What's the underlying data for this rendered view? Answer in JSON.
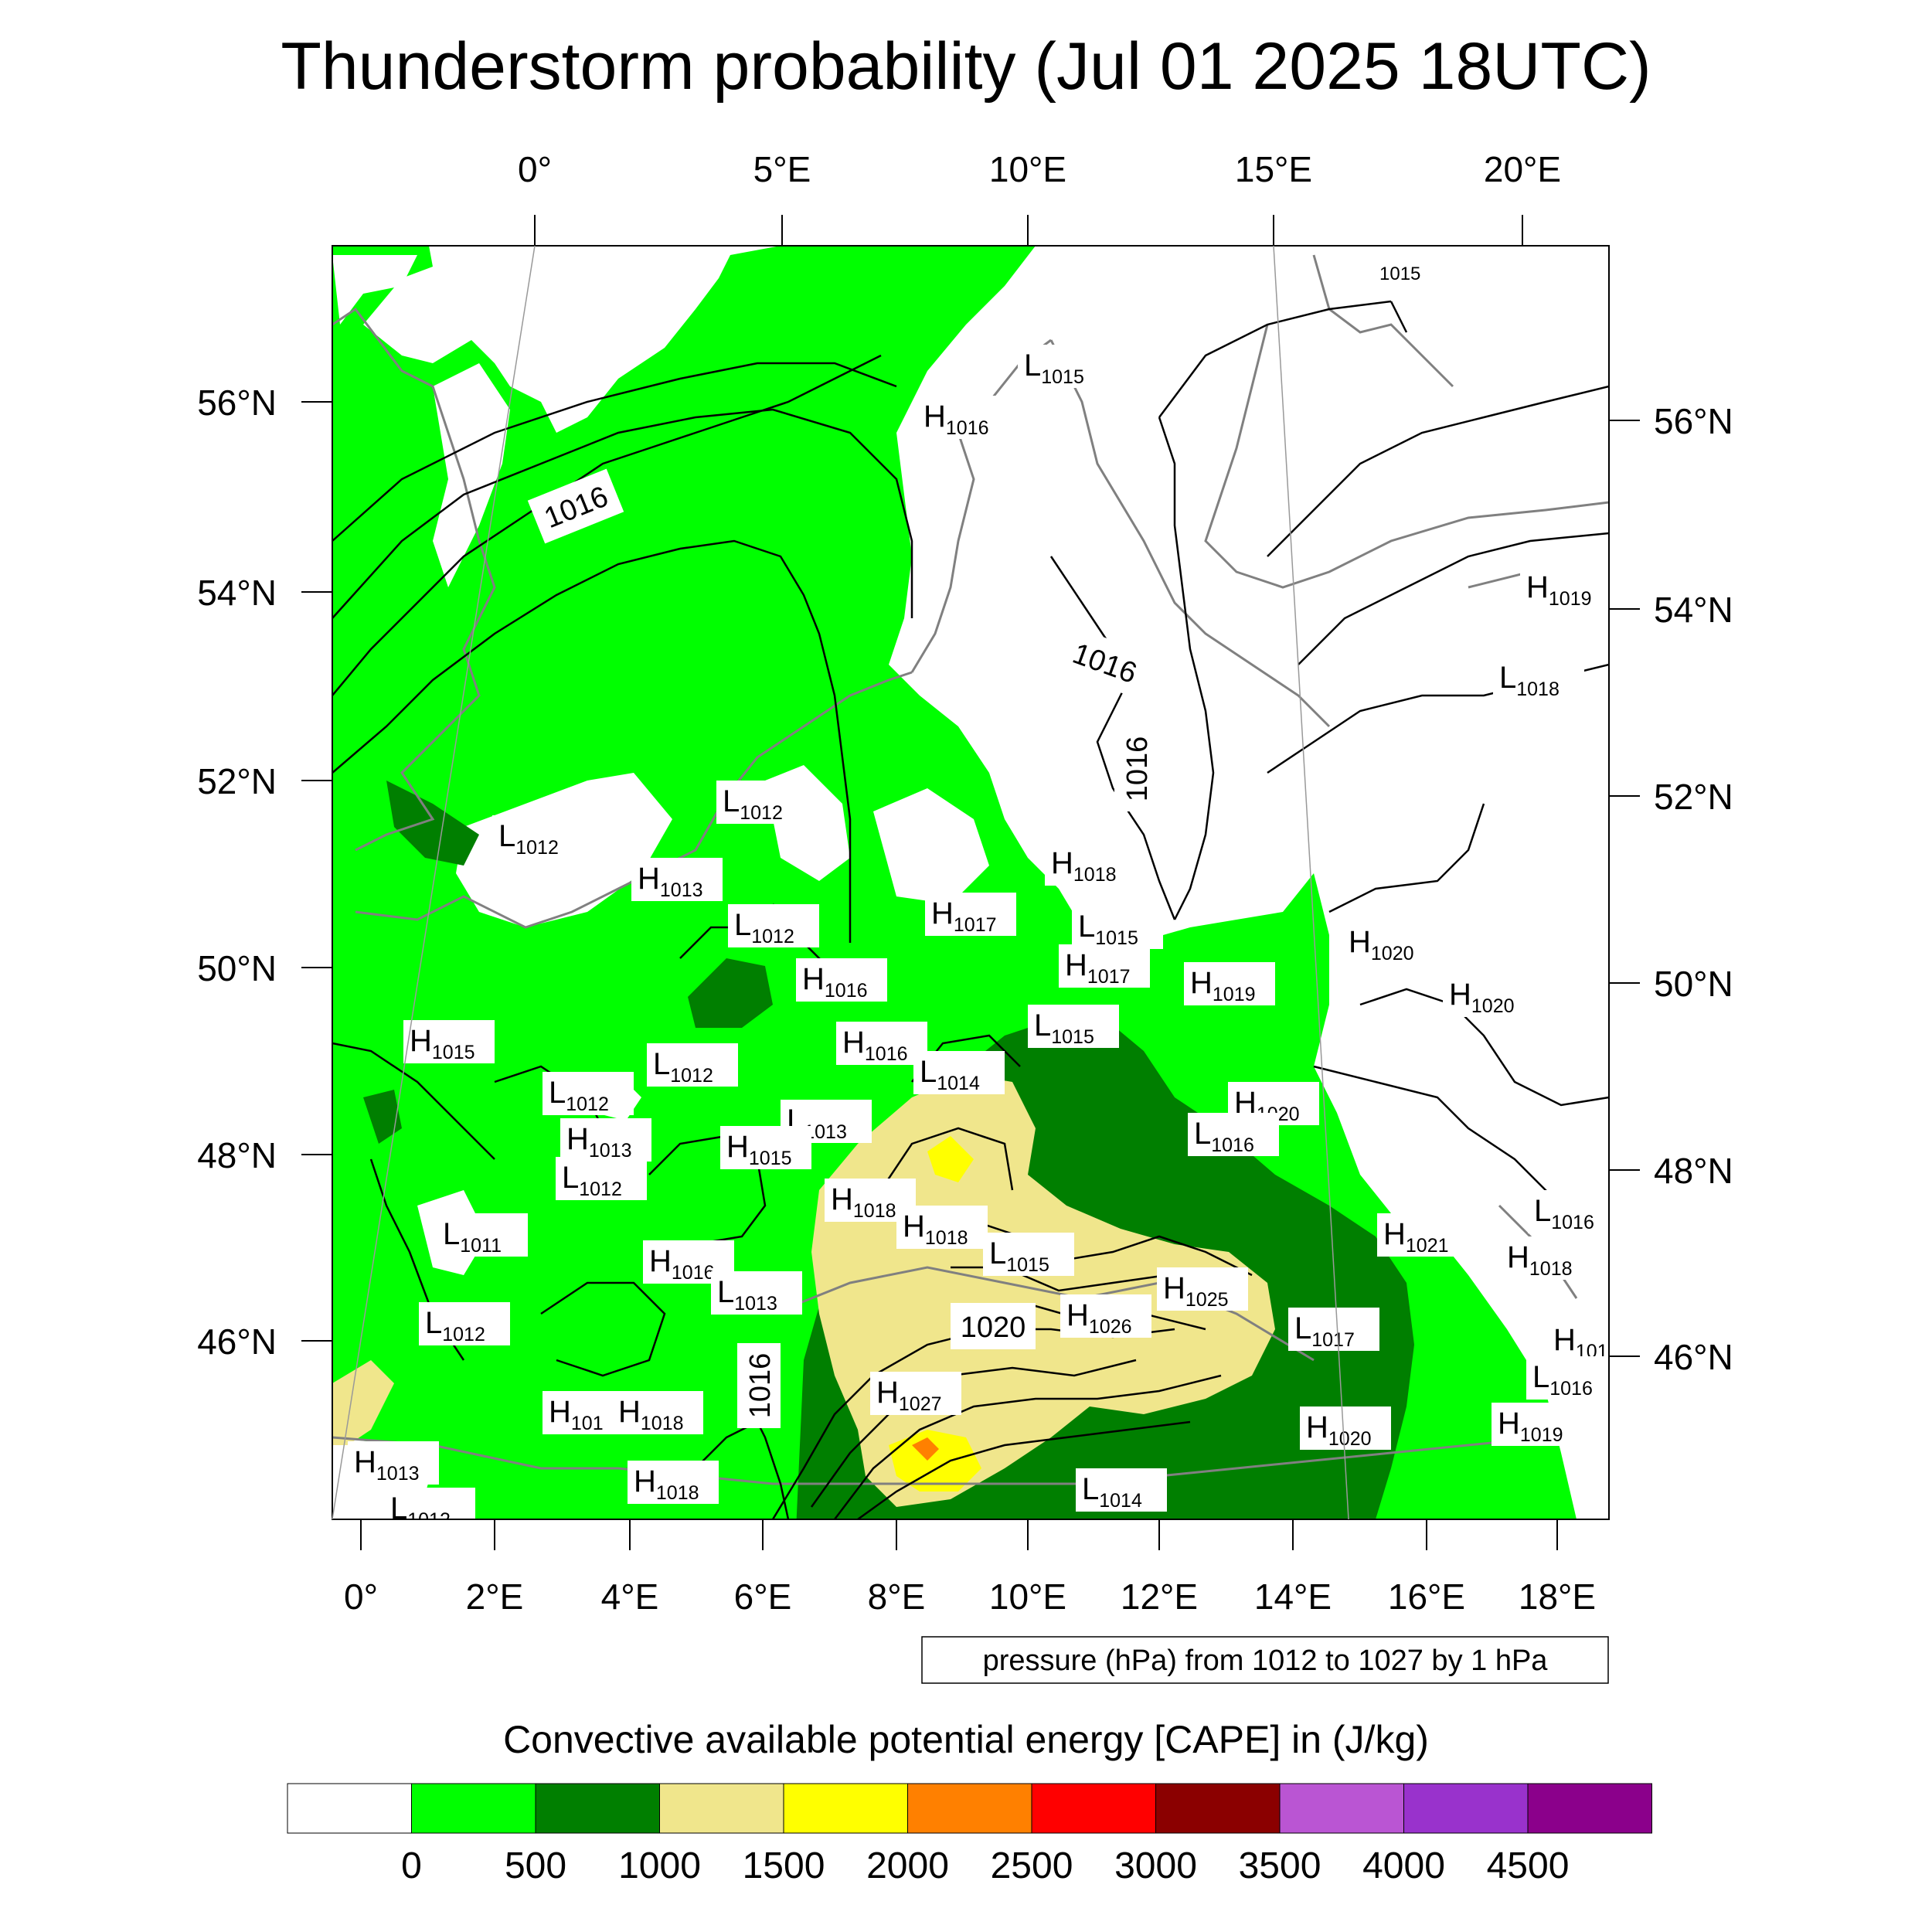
{
  "title": "Thunderstorm probability (Jul 01 2025 18UTC)",
  "top_lon_labels": [
    "0°",
    "5°E",
    "10°E",
    "15°E",
    "20°E"
  ],
  "bottom_lon_labels": [
    "0°",
    "2°E",
    "4°E",
    "6°E",
    "8°E",
    "10°E",
    "12°E",
    "14°E",
    "16°E",
    "18°E"
  ],
  "left_lat_labels": [
    "56°N",
    "54°N",
    "52°N",
    "50°N",
    "48°N",
    "46°N"
  ],
  "right_lat_labels": [
    "56°N",
    "54°N",
    "52°N",
    "50°N",
    "48°N",
    "46°N"
  ],
  "contour_info": "pressure (hPa) from 1012 to 1027 by 1 hPa",
  "isobar_labels": [
    "1016",
    "1016",
    "1016",
    "1016",
    "1020",
    "1015"
  ],
  "pressure_centers": [
    {
      "type": "L",
      "value": "1015"
    },
    {
      "type": "H",
      "value": "1016"
    },
    {
      "type": "H",
      "value": "1019"
    },
    {
      "type": "L",
      "value": "1018"
    },
    {
      "type": "L",
      "value": "1012"
    },
    {
      "type": "L",
      "value": "1012"
    },
    {
      "type": "H",
      "value": "1013"
    },
    {
      "type": "H",
      "value": "1018"
    },
    {
      "type": "L",
      "value": "1012"
    },
    {
      "type": "H",
      "value": "1017"
    },
    {
      "type": "L",
      "value": "1015"
    },
    {
      "type": "H",
      "value": "1016"
    },
    {
      "type": "H",
      "value": "1017"
    },
    {
      "type": "H",
      "value": "1020"
    },
    {
      "type": "H",
      "value": "1019"
    },
    {
      "type": "H",
      "value": "1020"
    },
    {
      "type": "H",
      "value": "1015"
    },
    {
      "type": "L",
      "value": "1015"
    },
    {
      "type": "H",
      "value": "1016"
    },
    {
      "type": "L",
      "value": "1012"
    },
    {
      "type": "L",
      "value": "1014"
    },
    {
      "type": "L",
      "value": "1012"
    },
    {
      "type": "L",
      "value": "1013"
    },
    {
      "type": "H",
      "value": "1013"
    },
    {
      "type": "H",
      "value": "1020"
    },
    {
      "type": "H",
      "value": "1015"
    },
    {
      "type": "L",
      "value": "1016"
    },
    {
      "type": "L",
      "value": "1012"
    },
    {
      "type": "H",
      "value": "1018"
    },
    {
      "type": "H",
      "value": "1018"
    },
    {
      "type": "L",
      "value": "1016"
    },
    {
      "type": "L",
      "value": "1011"
    },
    {
      "type": "H",
      "value": "1021"
    },
    {
      "type": "H",
      "value": "1018"
    },
    {
      "type": "H",
      "value": "1016"
    },
    {
      "type": "L",
      "value": "1015"
    },
    {
      "type": "L",
      "value": "1013"
    },
    {
      "type": "H",
      "value": "1025"
    },
    {
      "type": "H",
      "value": "1026"
    },
    {
      "type": "L",
      "value": "1012"
    },
    {
      "type": "L",
      "value": "1017"
    },
    {
      "type": "H",
      "value": "101"
    },
    {
      "type": "L",
      "value": "1016"
    },
    {
      "type": "H",
      "value": "1027"
    },
    {
      "type": "H",
      "value": "101"
    },
    {
      "type": "H",
      "value": "1018"
    },
    {
      "type": "H",
      "value": "1020"
    },
    {
      "type": "H",
      "value": "1019"
    },
    {
      "type": "H",
      "value": "1013"
    },
    {
      "type": "L",
      "value": "1012"
    },
    {
      "type": "H",
      "value": "1018"
    },
    {
      "type": "L",
      "value": "1014"
    }
  ],
  "colorbar_title": "Convective available potential energy [CAPE] in (J/kg)",
  "colorbar": {
    "colors": [
      "#ffffff",
      "#00ff00",
      "#007f00",
      "#f0e68c",
      "#ffff00",
      "#ff8000",
      "#ff0000",
      "#8b0000",
      "#ba55d3",
      "#9932cc",
      "#8b008b"
    ],
    "labels": [
      "0",
      "500",
      "1000",
      "1500",
      "2000",
      "2500",
      "3000",
      "3500",
      "4000",
      "4500"
    ]
  },
  "map_colors": {
    "green": "#00ff00",
    "darkgreen": "#007f00",
    "khaki": "#f0e68c",
    "yellow": "#ffff00",
    "orange": "#ff8000",
    "coast": "#808080"
  }
}
